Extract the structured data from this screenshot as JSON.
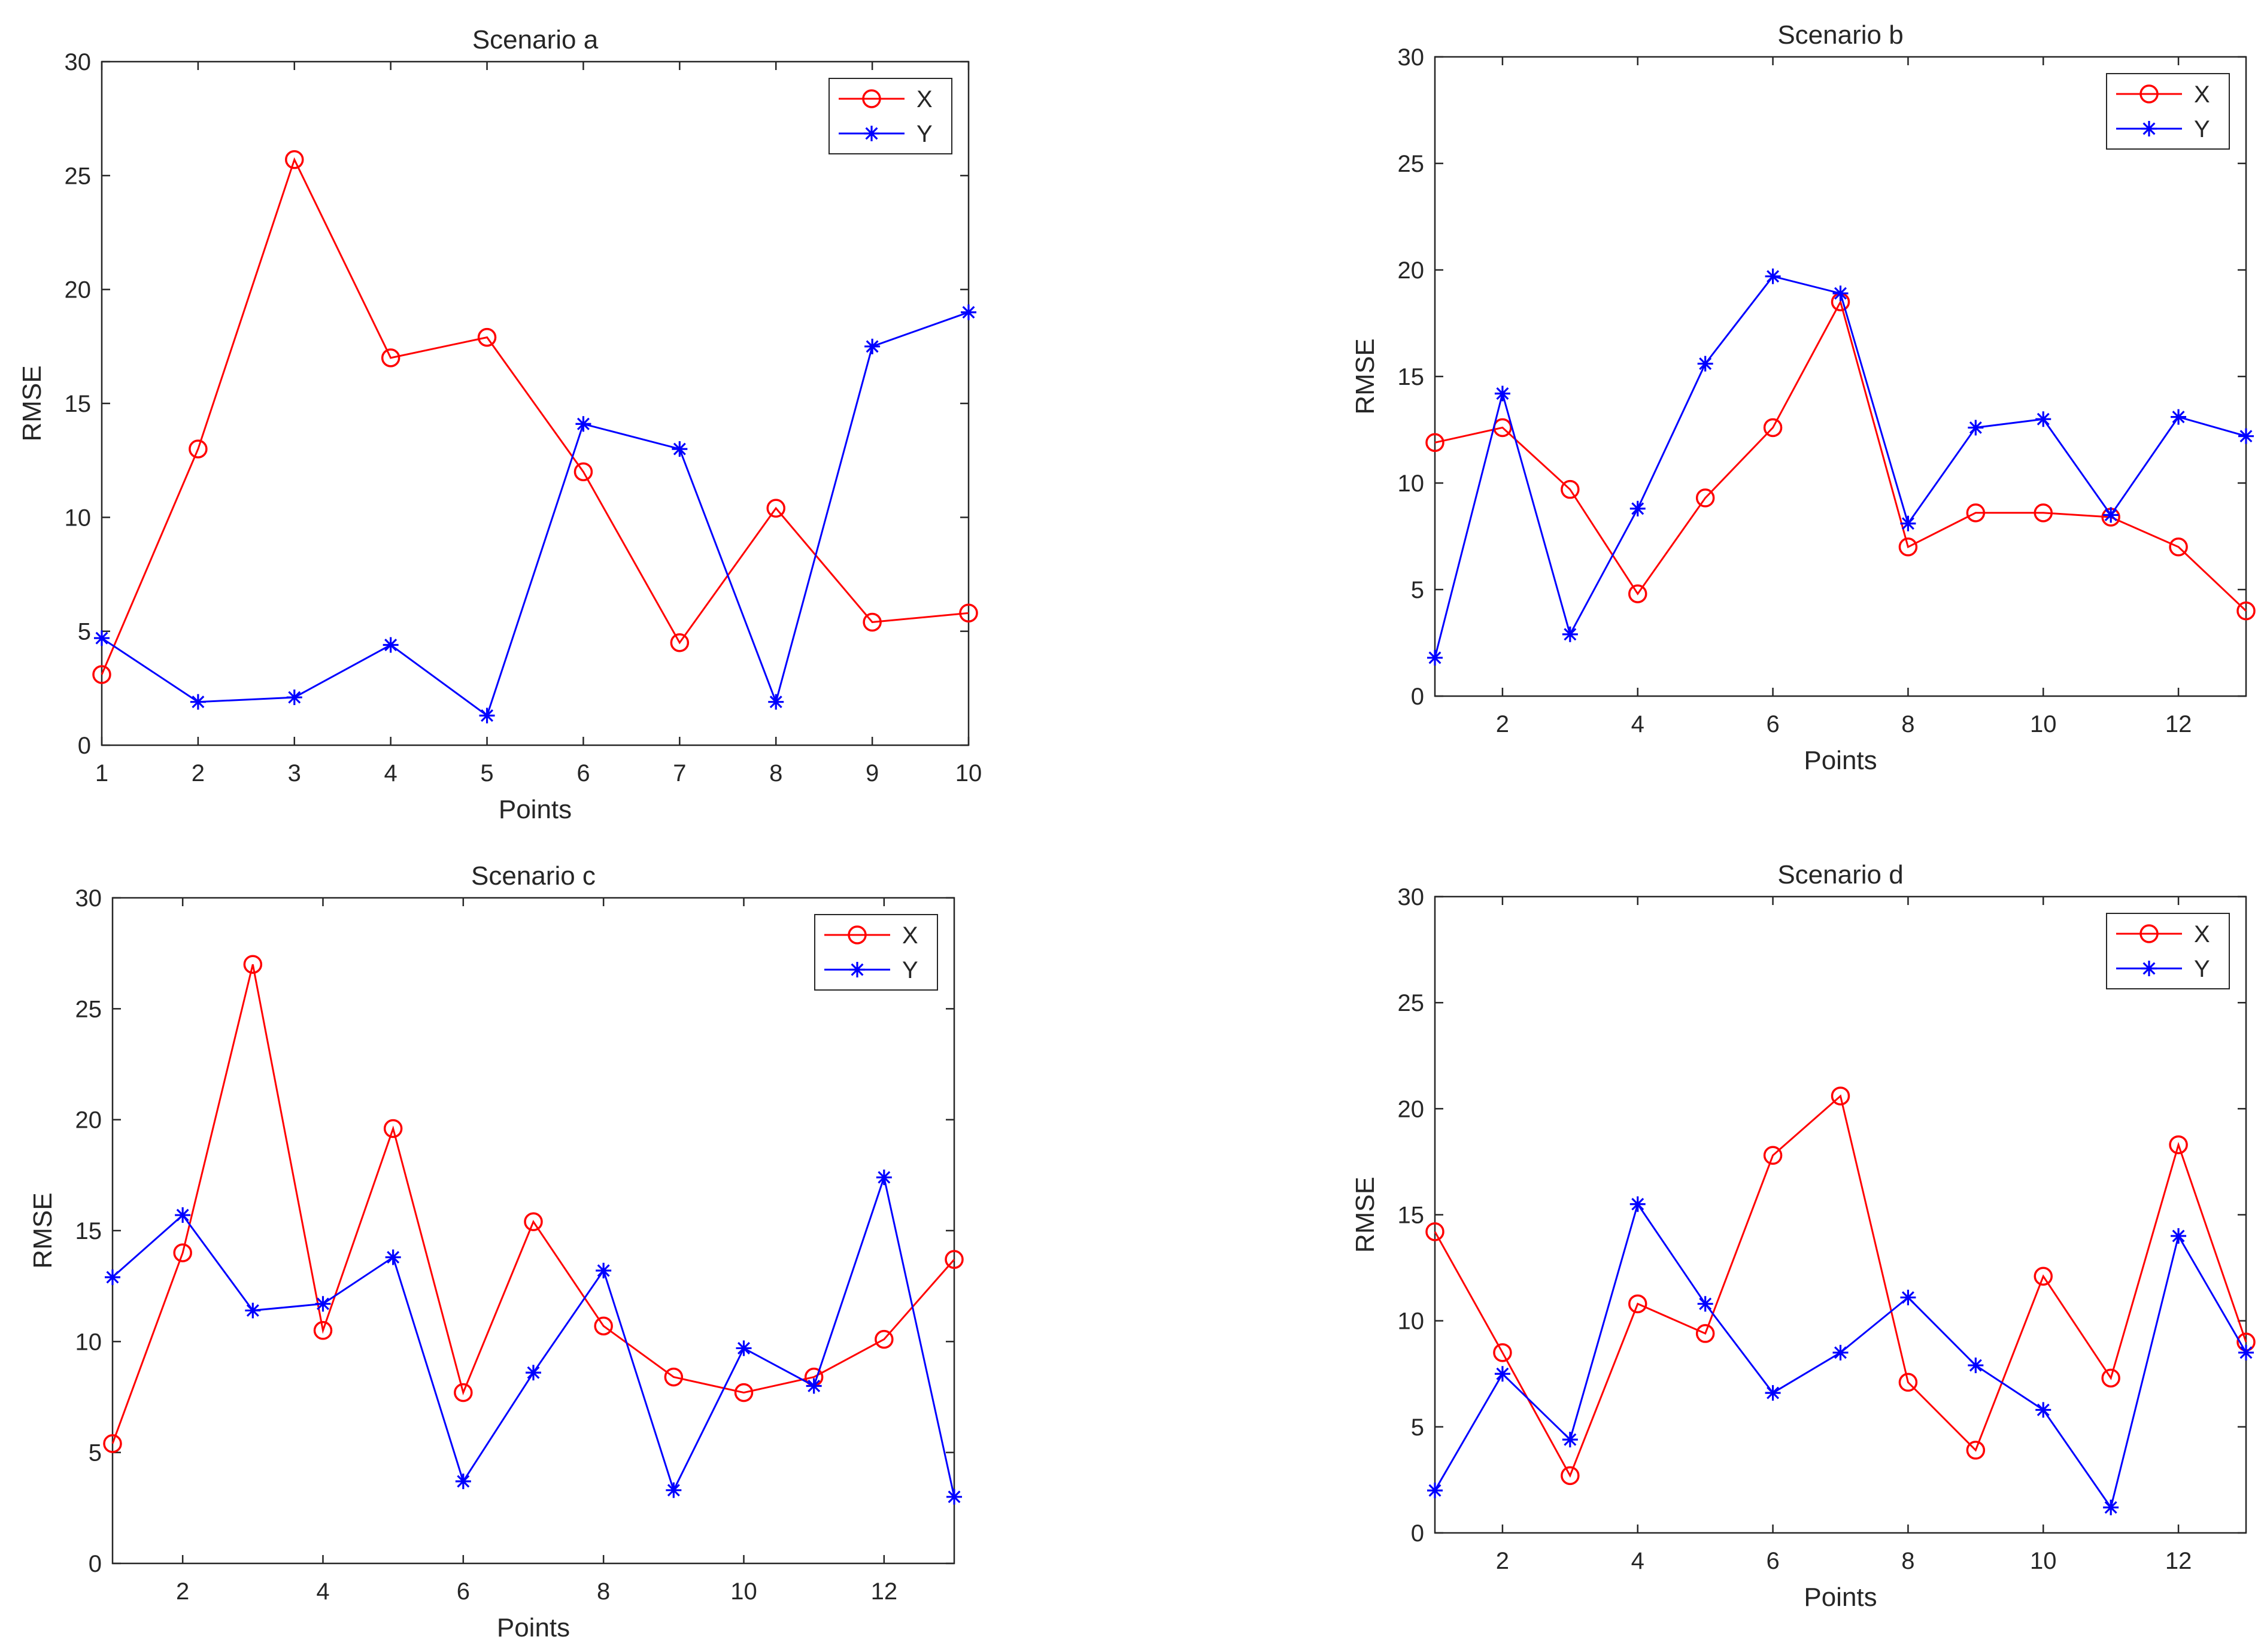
{
  "colors": {
    "x_series": "#ff0000",
    "y_series": "#0000ff",
    "axis": "#262626"
  },
  "chart_data": [
    {
      "type": "line",
      "title": "Scenario a",
      "xlabel": "Points",
      "ylabel": "RMSE",
      "xlim": [
        1,
        10
      ],
      "ylim": [
        0,
        30
      ],
      "xticks": [
        1,
        2,
        3,
        4,
        5,
        6,
        7,
        8,
        9,
        10
      ],
      "yticks": [
        0,
        5,
        10,
        15,
        20,
        25,
        30
      ],
      "legend": "top-right",
      "x": [
        1,
        2,
        3,
        4,
        5,
        6,
        7,
        8,
        9,
        10
      ],
      "series": [
        {
          "name": "X",
          "marker": "circle",
          "values": [
            3.1,
            13.0,
            25.7,
            17.0,
            17.9,
            12.0,
            4.5,
            10.4,
            5.4,
            5.8
          ]
        },
        {
          "name": "Y",
          "marker": "asterisk",
          "values": [
            4.7,
            1.9,
            2.1,
            4.4,
            1.3,
            14.1,
            13.0,
            1.9,
            17.5,
            19.0
          ]
        }
      ]
    },
    {
      "type": "line",
      "title": "Scenario b",
      "xlabel": "Points",
      "ylabel": "RMSE",
      "xlim": [
        1,
        13
      ],
      "ylim": [
        0,
        30
      ],
      "xticks": [
        2,
        4,
        6,
        8,
        10,
        12
      ],
      "yticks": [
        0,
        5,
        10,
        15,
        20,
        25,
        30
      ],
      "legend": "top-right",
      "x": [
        1,
        2,
        3,
        4,
        5,
        6,
        7,
        8,
        9,
        10,
        11,
        12,
        13
      ],
      "series": [
        {
          "name": "X",
          "marker": "circle",
          "values": [
            11.9,
            12.6,
            9.7,
            4.8,
            9.3,
            12.6,
            18.5,
            7.0,
            8.6,
            8.6,
            8.4,
            7.0,
            4.0
          ]
        },
        {
          "name": "Y",
          "marker": "asterisk",
          "values": [
            1.8,
            14.2,
            2.9,
            8.8,
            15.6,
            19.7,
            18.9,
            8.1,
            12.6,
            13.0,
            8.5,
            13.1,
            12.2
          ]
        }
      ]
    },
    {
      "type": "line",
      "title": "Scenario c",
      "xlabel": "Points",
      "ylabel": "RMSE",
      "xlim": [
        1,
        13
      ],
      "ylim": [
        0,
        30
      ],
      "xticks": [
        2,
        4,
        6,
        8,
        10,
        12
      ],
      "yticks": [
        0,
        5,
        10,
        15,
        20,
        25,
        30
      ],
      "legend": "top-right",
      "x": [
        1,
        2,
        3,
        4,
        5,
        6,
        7,
        8,
        9,
        10,
        11,
        12,
        13
      ],
      "series": [
        {
          "name": "X",
          "marker": "circle",
          "values": [
            5.4,
            14.0,
            27.0,
            10.5,
            19.6,
            7.7,
            15.4,
            10.7,
            8.4,
            7.7,
            8.4,
            10.1,
            13.7
          ]
        },
        {
          "name": "Y",
          "marker": "asterisk",
          "values": [
            12.9,
            15.7,
            11.4,
            11.7,
            13.8,
            3.7,
            8.6,
            13.2,
            3.3,
            9.7,
            8.0,
            17.4,
            3.0
          ]
        }
      ]
    },
    {
      "type": "line",
      "title": "Scenario d",
      "xlabel": "Points",
      "ylabel": "RMSE",
      "xlim": [
        1,
        13
      ],
      "ylim": [
        0,
        30
      ],
      "xticks": [
        2,
        4,
        6,
        8,
        10,
        12
      ],
      "yticks": [
        0,
        5,
        10,
        15,
        20,
        25,
        30
      ],
      "legend": "top-right",
      "x": [
        1,
        2,
        3,
        4,
        5,
        6,
        7,
        8,
        9,
        10,
        11,
        12,
        13
      ],
      "series": [
        {
          "name": "X",
          "marker": "circle",
          "values": [
            14.2,
            8.5,
            2.7,
            10.8,
            9.4,
            17.8,
            20.6,
            7.1,
            3.9,
            12.1,
            7.3,
            18.3,
            9.0
          ]
        },
        {
          "name": "Y",
          "marker": "asterisk",
          "values": [
            2.0,
            7.5,
            4.4,
            15.5,
            10.8,
            6.6,
            8.5,
            11.1,
            7.9,
            5.8,
            1.2,
            14.0,
            8.5
          ]
        }
      ]
    }
  ]
}
